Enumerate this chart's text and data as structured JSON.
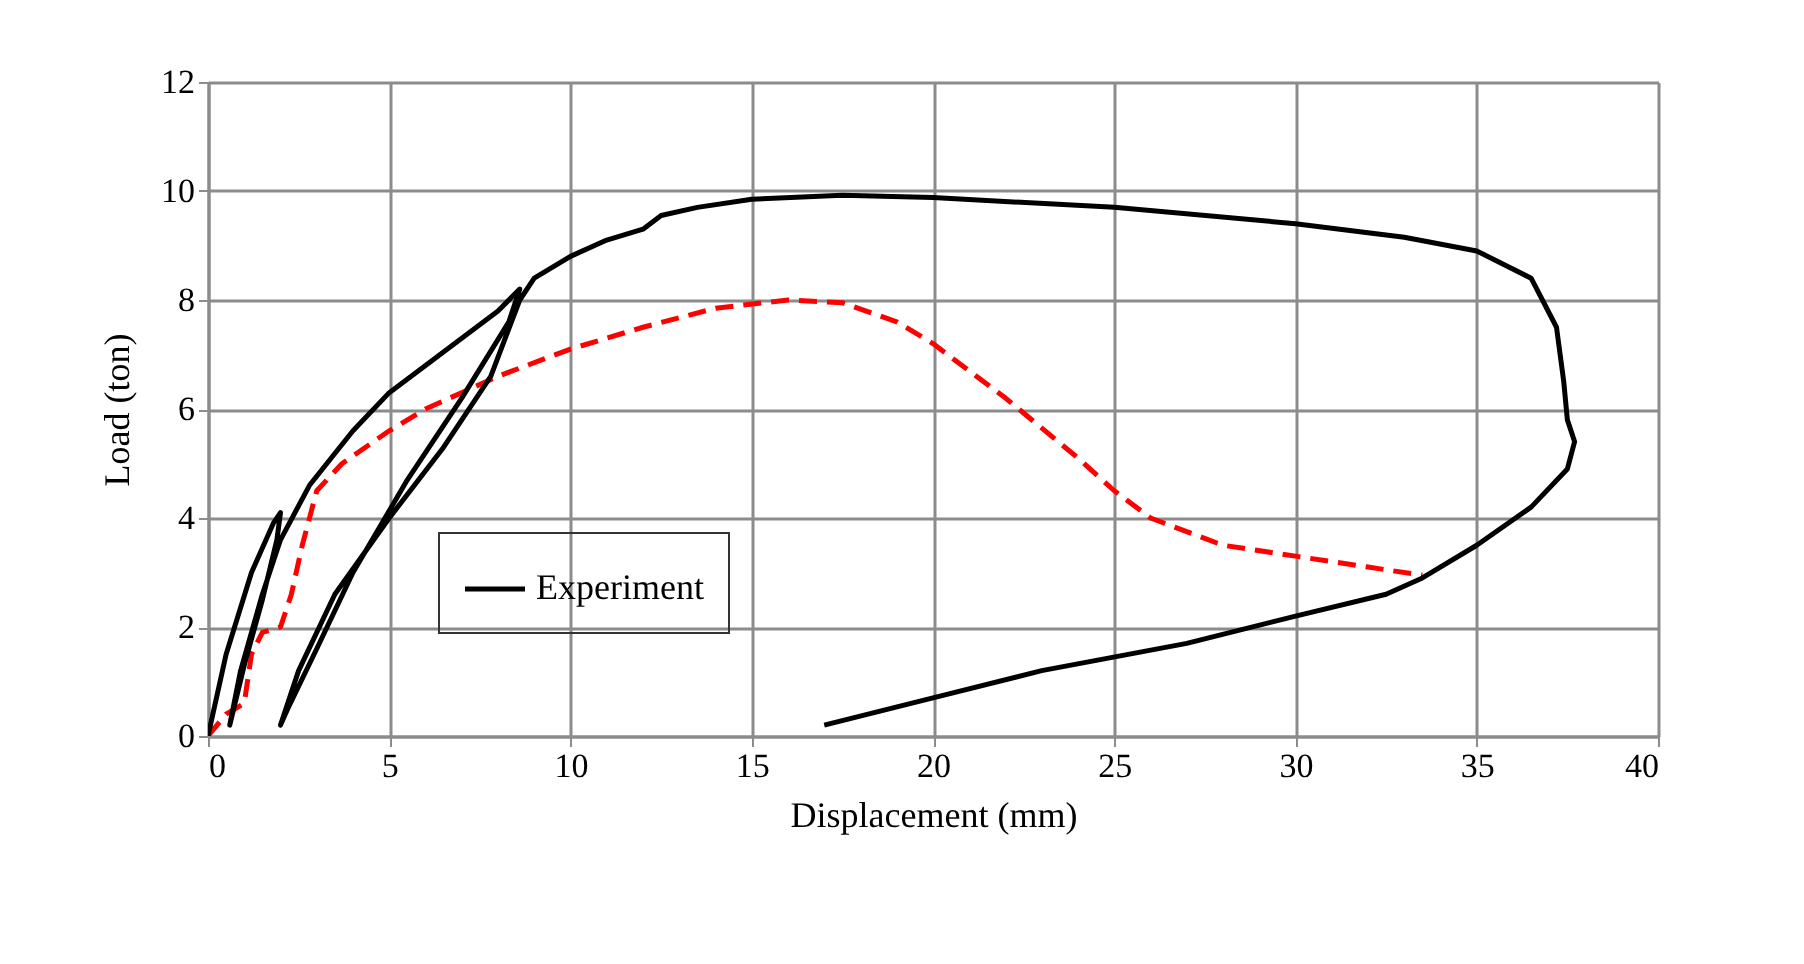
{
  "chart_data": {
    "type": "line",
    "xlabel": "Displacement (mm)",
    "ylabel": "Load (ton)",
    "xlim": [
      0,
      40
    ],
    "xticks": [
      0,
      5,
      10,
      15,
      20,
      25,
      30,
      35,
      40
    ],
    "ylim": [
      0,
      12
    ],
    "yticks": [
      0,
      2,
      4,
      6,
      8,
      10,
      12
    ],
    "grid": true,
    "legend": "bottom left",
    "series": [
      {
        "color": "#ff0000",
        "line_style": "dashed",
        "x": [
          0,
          0.5,
          1.0,
          1.2,
          1.5,
          2.0,
          2.3,
          2.6,
          3,
          3.7,
          5,
          6,
          8,
          10,
          12,
          14,
          16,
          17.5,
          19,
          20,
          22,
          24,
          25,
          26,
          28,
          30,
          32,
          33.5
        ],
        "values": [
          0,
          0.4,
          0.6,
          1.5,
          1.9,
          2.0,
          2.6,
          3.5,
          4.5,
          5.0,
          5.6,
          6.0,
          6.6,
          7.1,
          7.5,
          7.85,
          8.0,
          7.95,
          7.6,
          7.2,
          6.2,
          5.1,
          4.5,
          4.0,
          3.5,
          3.3,
          3.1,
          2.95
        ]
      },
      {
        "name": "Experiment",
        "color": "#000000",
        "line_style": "solid",
        "x": [
          0,
          0.5,
          1.2,
          1.8,
          2.0,
          1.9,
          1.5,
          1.0,
          0.6,
          0.9,
          1.5,
          2.0,
          2.8,
          4,
          5,
          6,
          7,
          8,
          8.6,
          8.3,
          7,
          5.5,
          4,
          3,
          2.2,
          2,
          2.5,
          3.5,
          5,
          6.5,
          7.8,
          8.6,
          9,
          10,
          11,
          12,
          12.5,
          13.5,
          15,
          17.5,
          20,
          25,
          30,
          33,
          35,
          36.5,
          37.2,
          37.4,
          37.5,
          37.7,
          37.5,
          36.5,
          35,
          33.5,
          32.5,
          30,
          27,
          23,
          20,
          17
        ],
        "values": [
          0,
          1.5,
          3,
          3.9,
          4.1,
          3.6,
          2.5,
          1.3,
          0.2,
          1.2,
          2.6,
          3.6,
          4.6,
          5.6,
          6.3,
          6.8,
          7.3,
          7.8,
          8.2,
          7.6,
          6.2,
          4.7,
          3.0,
          1.6,
          0.5,
          0.2,
          1.2,
          2.6,
          4,
          5.3,
          6.6,
          8.0,
          8.4,
          8.8,
          9.1,
          9.3,
          9.55,
          9.7,
          9.85,
          9.92,
          9.88,
          9.7,
          9.4,
          9.15,
          8.9,
          8.4,
          7.5,
          6.5,
          5.8,
          5.4,
          4.9,
          4.2,
          3.5,
          2.9,
          2.6,
          2.2,
          1.7,
          1.2,
          0.7,
          0.2
        ]
      }
    ]
  }
}
